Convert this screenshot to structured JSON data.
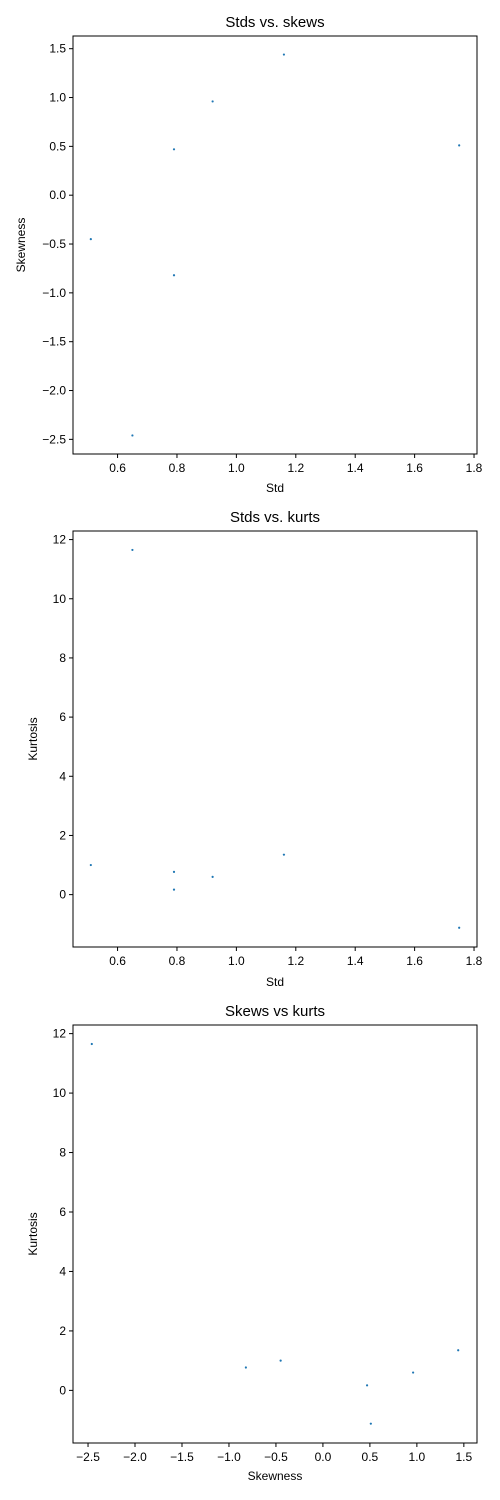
{
  "colors": {
    "point": "#1f77b4",
    "axis": "#000000",
    "background": "#ffffff"
  },
  "chart_data": [
    {
      "type": "scatter",
      "title": "Stds vs. skews",
      "xlabel": "Std",
      "ylabel": "Skewness",
      "xlim": [
        0.45,
        1.81
      ],
      "ylim": [
        -2.65,
        1.63
      ],
      "xticks": [
        0.6,
        0.8,
        1.0,
        1.2,
        1.4,
        1.6,
        1.8
      ],
      "xtick_labels": [
        "0.6",
        "0.8",
        "1.0",
        "1.2",
        "1.4",
        "1.6",
        "1.8"
      ],
      "yticks": [
        -2.5,
        -2.0,
        -1.5,
        -1.0,
        -0.5,
        0.0,
        0.5,
        1.0,
        1.5
      ],
      "ytick_labels": [
        "−2.5",
        "−2.0",
        "−1.5",
        "−1.0",
        "−0.5",
        "0.0",
        "0.5",
        "1.0",
        "1.5"
      ],
      "grid": false,
      "points": [
        {
          "x": 0.51,
          "y": -0.45
        },
        {
          "x": 0.65,
          "y": -2.46
        },
        {
          "x": 0.79,
          "y": 0.47
        },
        {
          "x": 0.79,
          "y": -0.82
        },
        {
          "x": 0.92,
          "y": 0.96
        },
        {
          "x": 1.16,
          "y": 1.44
        },
        {
          "x": 1.75,
          "y": 0.51
        }
      ]
    },
    {
      "type": "scatter",
      "title": "Stds vs. kurts",
      "xlabel": "Std",
      "ylabel": "Kurtosis",
      "xlim": [
        0.45,
        1.81
      ],
      "ylim": [
        -1.77,
        12.29
      ],
      "xticks": [
        0.6,
        0.8,
        1.0,
        1.2,
        1.4,
        1.6,
        1.8
      ],
      "xtick_labels": [
        "0.6",
        "0.8",
        "1.0",
        "1.2",
        "1.4",
        "1.6",
        "1.8"
      ],
      "yticks": [
        0,
        2,
        4,
        6,
        8,
        10,
        12
      ],
      "ytick_labels": [
        "0",
        "2",
        "4",
        "6",
        "8",
        "10",
        "12"
      ],
      "grid": false,
      "points": [
        {
          "x": 0.51,
          "y": 1.0
        },
        {
          "x": 0.65,
          "y": 11.65
        },
        {
          "x": 0.79,
          "y": 0.77
        },
        {
          "x": 0.79,
          "y": 0.17
        },
        {
          "x": 0.92,
          "y": 0.6
        },
        {
          "x": 1.16,
          "y": 1.35
        },
        {
          "x": 1.75,
          "y": -1.12
        }
      ]
    },
    {
      "type": "scatter",
      "title": "Skews vs kurts",
      "xlabel": "Skewness",
      "ylabel": "Kurtosis",
      "xlim": [
        -2.66,
        1.64
      ],
      "ylim": [
        -1.77,
        12.29
      ],
      "xticks": [
        -2.5,
        -2.0,
        -1.5,
        -1.0,
        -0.5,
        0.0,
        0.5,
        1.0,
        1.5
      ],
      "xtick_labels": [
        "−2.5",
        "−2.0",
        "−1.5",
        "−1.0",
        "−0.5",
        "0.0",
        "0.5",
        "1.0",
        "1.5"
      ],
      "yticks": [
        0,
        2,
        4,
        6,
        8,
        10,
        12
      ],
      "ytick_labels": [
        "0",
        "2",
        "4",
        "6",
        "8",
        "10",
        "12"
      ],
      "grid": false,
      "points": [
        {
          "x": -2.46,
          "y": 11.65
        },
        {
          "x": -0.82,
          "y": 0.77
        },
        {
          "x": -0.45,
          "y": 1.0
        },
        {
          "x": 0.47,
          "y": 0.17
        },
        {
          "x": 0.51,
          "y": -1.12
        },
        {
          "x": 0.96,
          "y": 0.6
        },
        {
          "x": 1.44,
          "y": 1.35
        }
      ]
    }
  ]
}
